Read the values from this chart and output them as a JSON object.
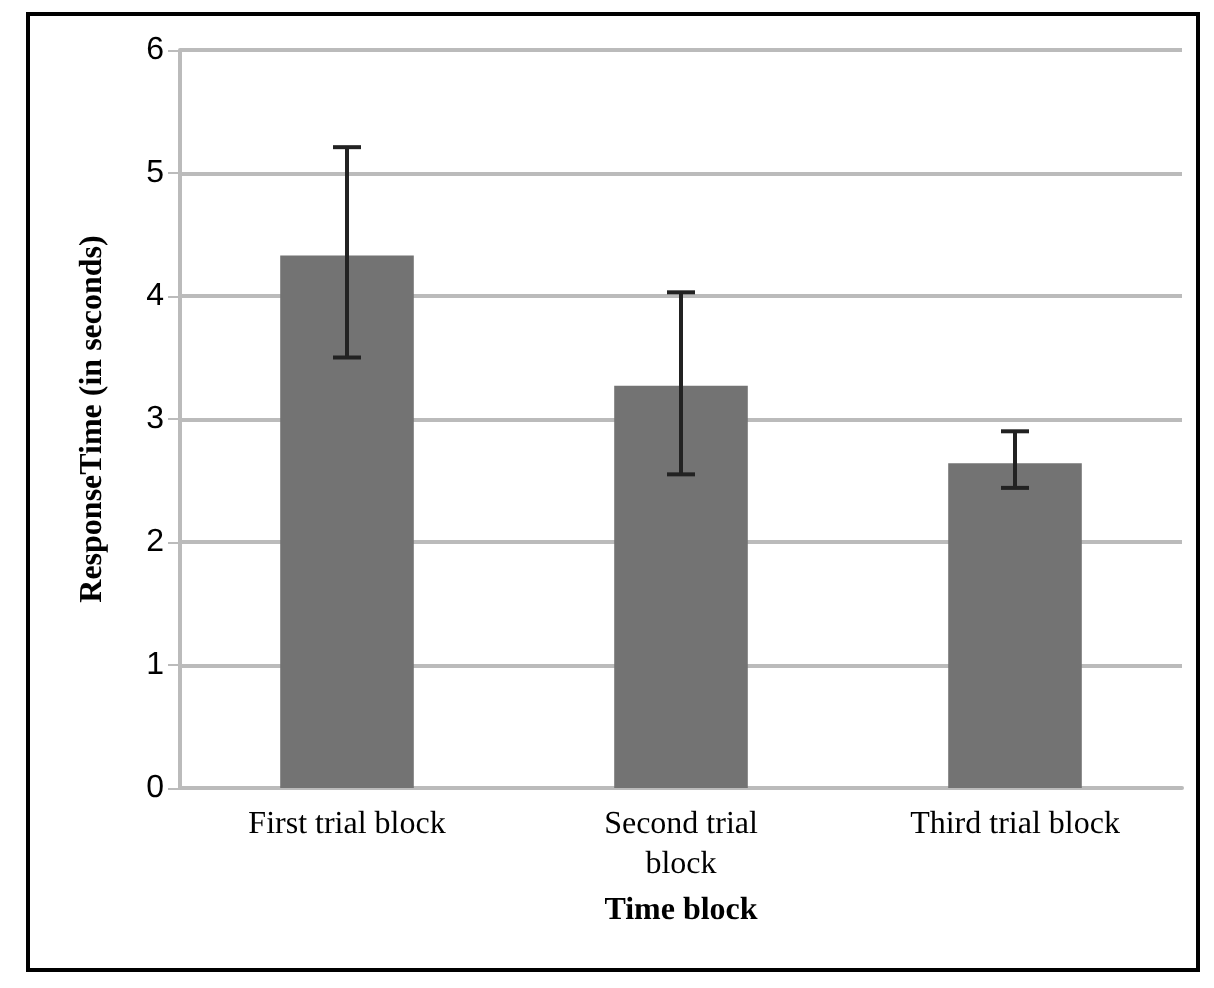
{
  "chart_data": {
    "type": "bar",
    "xlabel": "Time block",
    "ylabel": "ResponseTime (in seconds)",
    "categories": [
      "First trial block",
      "Second trial block",
      "Third trial block"
    ],
    "values": [
      4.33,
      3.27,
      2.64
    ],
    "color": "#737373",
    "errors": [
      [
        3.5,
        5.21
      ],
      [
        2.55,
        4.03
      ],
      [
        2.44,
        2.9
      ]
    ],
    "ylim": [
      0,
      6
    ],
    "yticks": [
      0,
      1,
      2,
      3,
      4,
      5,
      6
    ],
    "grid": "y"
  }
}
